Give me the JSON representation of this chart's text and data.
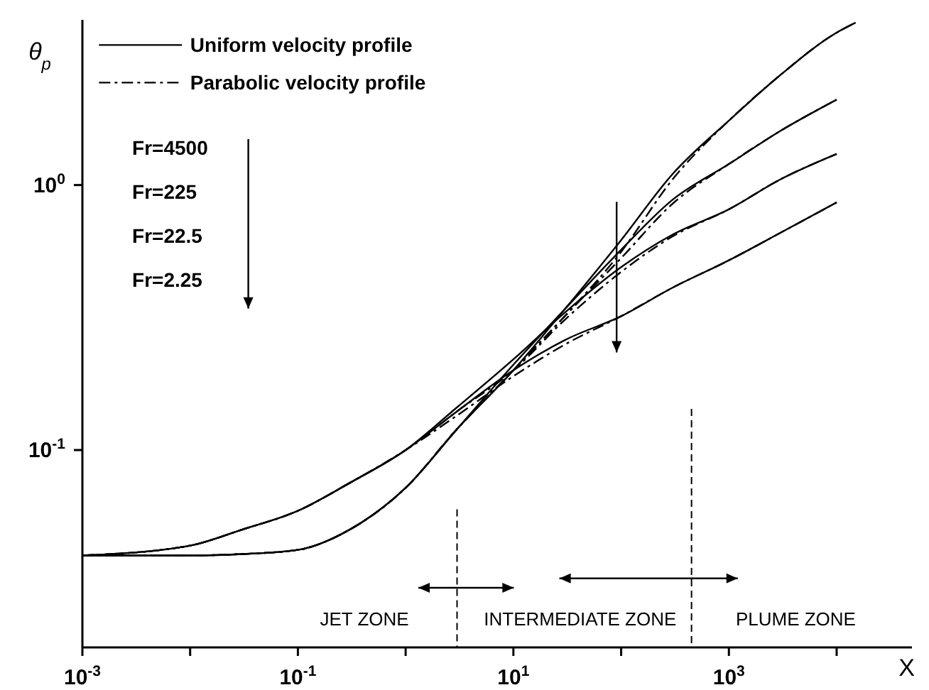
{
  "chart_data": {
    "type": "line",
    "ylabel": "θ$_{p}$",
    "xlabel": "X",
    "log": "xy",
    "xlim": [
      0.001,
      50000
    ],
    "ylim": [
      0.018,
      4.2
    ],
    "xticks": [
      {
        "value": 0.001,
        "label": "10$^{-3}$"
      },
      {
        "value": 0.01,
        "label": null
      },
      {
        "value": 0.1,
        "label": "10$^{-1}$"
      },
      {
        "value": 1,
        "label": null
      },
      {
        "value": 10,
        "label": "10$^{1}$"
      },
      {
        "value": 100,
        "label": null
      },
      {
        "value": 1000,
        "label": "10$^{3}$"
      },
      {
        "value": 10000,
        "label": null
      }
    ],
    "yticks": [
      {
        "value": 0.1,
        "label": "10$^{-1}$"
      },
      {
        "value": 1,
        "label": "10$^{0}$"
      }
    ],
    "legend": "top left",
    "marker": "none",
    "x": [
      0.001,
      0.01,
      0.03,
      0.1,
      0.3,
      1,
      3,
      10,
      30,
      100,
      300,
      1000,
      3000,
      10000
    ],
    "series": [
      {
        "name": "Uniform velocity profile",
        "color": "#000000",
        "line_style": "solid",
        "x": [
          0.001,
          0.01,
          0.03,
          0.1,
          0.3,
          1,
          3,
          10,
          30,
          100,
          300,
          1000,
          3000,
          10000,
          15000
        ],
        "values": [
          0.04,
          0.04,
          0.0405,
          0.042,
          0.05,
          0.072,
          0.12,
          0.2,
          0.34,
          0.62,
          1.1,
          1.75,
          2.6,
          3.76,
          4.1
        ]
      },
      {
        "color": "#000000",
        "line_style": "solid",
        "values": [
          0.04,
          0.04,
          0.0405,
          0.042,
          0.05,
          0.072,
          0.12,
          0.21,
          0.34,
          0.57,
          0.88,
          1.2,
          1.6,
          2.1
        ]
      },
      {
        "color": "#000000",
        "line_style": "solid",
        "values": [
          0.04,
          0.0436,
          0.05,
          0.059,
          0.075,
          0.1,
          0.145,
          0.22,
          0.33,
          0.49,
          0.65,
          0.81,
          1.05,
          1.31
        ]
      },
      {
        "color": "#000000",
        "line_style": "solid",
        "values": [
          0.04,
          0.0436,
          0.05,
          0.059,
          0.075,
          0.1,
          0.14,
          0.2,
          0.26,
          0.32,
          0.41,
          0.52,
          0.66,
          0.86
        ]
      },
      {
        "name": "Parabolic velocity profile",
        "color": "#000000",
        "line_style": "dashed",
        "x": [
          0.001,
          0.01,
          0.03,
          0.1,
          0.3,
          1,
          3,
          10,
          30,
          100,
          300,
          1000,
          3000,
          10000,
          15000
        ],
        "values": [
          0.04,
          0.04,
          0.0405,
          0.042,
          0.05,
          0.072,
          0.12,
          0.2,
          0.32,
          0.56,
          1.05,
          1.75,
          2.6,
          3.76,
          4.1
        ]
      },
      {
        "color": "#000000",
        "line_style": "dashed",
        "values": [
          0.04,
          0.04,
          0.0405,
          0.042,
          0.05,
          0.072,
          0.12,
          0.2,
          0.32,
          0.53,
          0.85,
          1.2,
          1.6,
          2.1
        ]
      },
      {
        "color": "#000000",
        "line_style": "dashed",
        "values": [
          0.04,
          0.0436,
          0.05,
          0.059,
          0.075,
          0.1,
          0.14,
          0.2,
          0.31,
          0.47,
          0.64,
          0.81,
          1.05,
          1.31
        ]
      },
      {
        "color": "#000000",
        "line_style": "dashed",
        "values": [
          0.04,
          0.0436,
          0.05,
          0.059,
          0.075,
          0.1,
          0.135,
          0.19,
          0.25,
          0.32,
          0.41,
          0.52,
          0.66,
          0.86
        ]
      }
    ],
    "ref_lines": [
      {
        "axis": "x",
        "value": 3,
        "line_style": "dashed"
      },
      {
        "axis": "x",
        "value": 450,
        "line_style": "dashed"
      }
    ],
    "annotations": [
      "Fr=4500",
      "Fr=225",
      "Fr=22.5",
      "Fr=2.25",
      "JET ZONE",
      "INTERMEDIATE ZONE",
      "PLUME ZONE"
    ]
  }
}
